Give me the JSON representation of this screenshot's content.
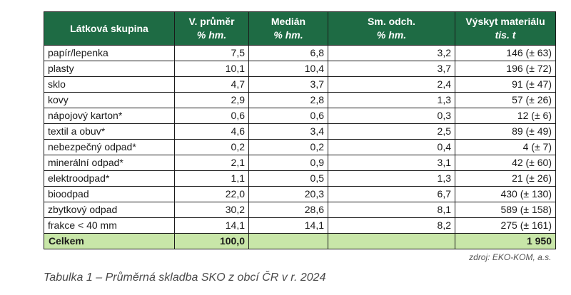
{
  "table": {
    "headers": [
      {
        "title": "Látková skupina",
        "unit": ""
      },
      {
        "title": "V. průměr",
        "unit": "% hm."
      },
      {
        "title": "Medián",
        "unit": "% hm."
      },
      {
        "title": "Sm. odch.",
        "unit": "% hm."
      },
      {
        "title": "Výskyt materiálu",
        "unit": "tis. t"
      }
    ],
    "rows": [
      {
        "name": "papír/lepenka",
        "mean": "7,5",
        "median": "6,8",
        "sd": "3,2",
        "amount": "146 (± 63)"
      },
      {
        "name": "plasty",
        "mean": "10,1",
        "median": "10,4",
        "sd": "3,7",
        "amount": "196 (± 72)"
      },
      {
        "name": "sklo",
        "mean": "4,7",
        "median": "3,7",
        "sd": "2,4",
        "amount": "91 (± 47)"
      },
      {
        "name": "kovy",
        "mean": "2,9",
        "median": "2,8",
        "sd": "1,3",
        "amount": "57 (± 26)"
      },
      {
        "name": "nápojový karton*",
        "mean": "0,6",
        "median": "0,6",
        "sd": "0,3",
        "amount": "12 (± 6)"
      },
      {
        "name": "textil a obuv*",
        "mean": "4,6",
        "median": "3,4",
        "sd": "2,5",
        "amount": "89 (± 49)"
      },
      {
        "name": "nebezpečný odpad*",
        "mean": "0,2",
        "median": "0,2",
        "sd": "0,4",
        "amount": "4 (± 7)"
      },
      {
        "name": "minerální odpad*",
        "mean": "2,1",
        "median": "0,9",
        "sd": "3,1",
        "amount": "42 (± 60)"
      },
      {
        "name": "elektroodpad*",
        "mean": "1,1",
        "median": "0,5",
        "sd": "1,3",
        "amount": "21 (± 26)"
      },
      {
        "name": "bioodpad",
        "mean": "22,0",
        "median": "20,3",
        "sd": "6,7",
        "amount": "430 (± 130)"
      },
      {
        "name": "zbytkový odpad",
        "mean": "30,2",
        "median": "28,6",
        "sd": "8,1",
        "amount": "589 (± 158)"
      },
      {
        "name": "frakce < 40 mm",
        "mean": "14,1",
        "median": "14,1",
        "sd": "8,2",
        "amount": "275 (± 161)"
      }
    ],
    "total": {
      "name": "Celkem",
      "mean": "100,0",
      "median": "",
      "sd": "",
      "amount": "1 950"
    },
    "source": "zdroj: EKO-KOM, a.s."
  },
  "caption": "Tabulka 1 – Průměrná skladba SKO z obcí ČR v r. 2024",
  "colors": {
    "header_bg": "#1e6b44",
    "total_bg": "#c8e6a8"
  }
}
